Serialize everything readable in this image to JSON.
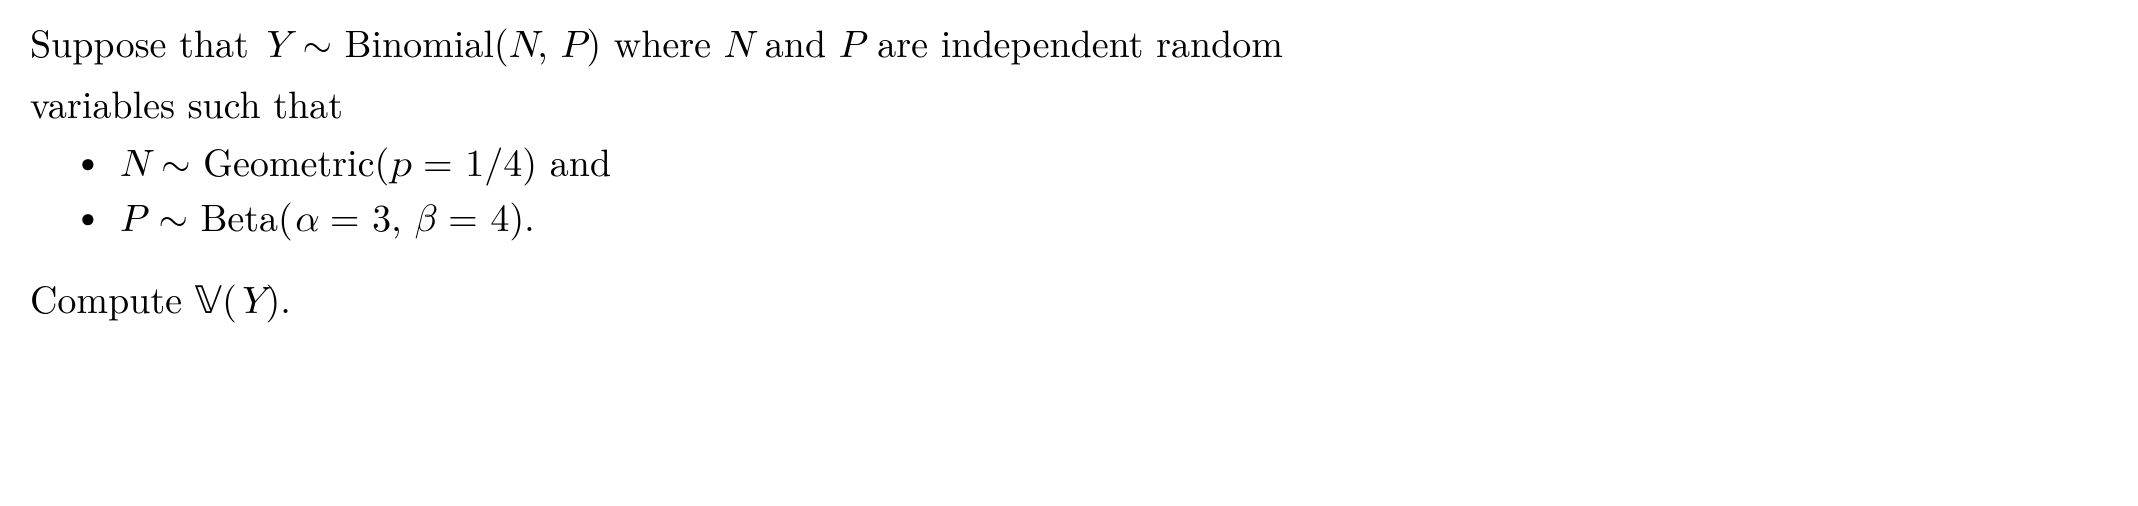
{
  "line1_a": "Suppose that ",
  "line1_y": "Y",
  "line1_sim": " ∼ ",
  "line1_binom": "Binomial(",
  "line1_n": "N",
  "line1_comma": ", ",
  "line1_p": "P",
  "line1_close": ") where ",
  "line1_n2": "N",
  "line1_and": " and ",
  "line1_p2": "P",
  "line1_tail": " are independent random",
  "line2": "variables such that",
  "bullet_marker": "●",
  "b1_n": "N",
  "b1_sim": " ∼ ",
  "b1_geo": "Geometric(",
  "b1_pvar": "p",
  "b1_eq": " = 1/4) and",
  "b2_p": "P",
  "b2_sim": " ∼ ",
  "b2_beta": "Beta(",
  "b2_alpha": "α",
  "b2_eq1": " = 3, ",
  "b2_beta_sym": "β",
  "b2_eq2": " = 4).",
  "compute_a": "Compute ",
  "compute_v": "𝕍",
  "compute_open": "(",
  "compute_y": "Y",
  "compute_close": ").",
  "colors": {
    "text": "#000000",
    "background": "#ffffff"
  },
  "fontsize_pt": 38
}
